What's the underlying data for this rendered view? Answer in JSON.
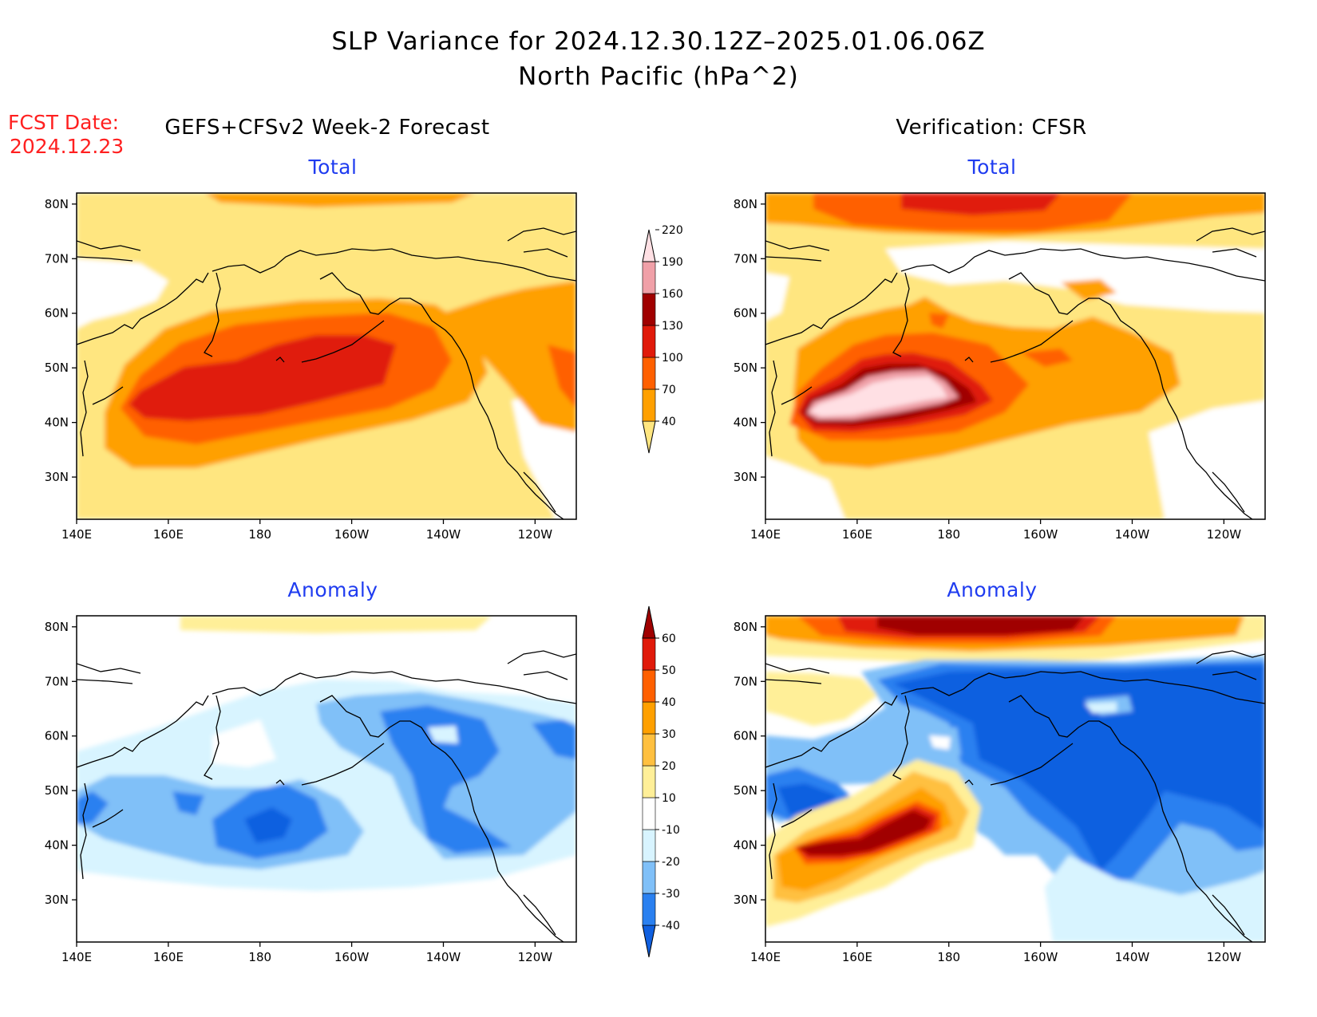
{
  "title_line1": "SLP Variance for 2024.12.30.12Z–2025.01.06.06Z",
  "title_line2": "North Pacific (hPa^2)",
  "fcst_date_label": "FCST Date:",
  "fcst_date_value": "2024.12.23",
  "left_column_title": "GEFS+CFSv2 Week-2 Forecast",
  "right_column_title": "Verification: CFSR",
  "panels": [
    {
      "id": "fcst-total",
      "title": "Total"
    },
    {
      "id": "verif-total",
      "title": "Total"
    },
    {
      "id": "fcst-anomaly",
      "title": "Anomaly"
    },
    {
      "id": "verif-anomaly",
      "title": "Anomaly"
    }
  ],
  "axes": {
    "lon_labels": [
      "140E",
      "160E",
      "180",
      "160W",
      "140W",
      "120W"
    ],
    "lat_labels": [
      "30N",
      "40N",
      "50N",
      "60N",
      "70N",
      "80N"
    ]
  },
  "colorbar_total": {
    "levels": [
      "40",
      "70",
      "100",
      "130",
      "160",
      "190",
      "220"
    ],
    "colors": [
      "#ffe680",
      "#ffa000",
      "#ff6000",
      "#e01a0a",
      "#a00000",
      "#f0a0a8",
      "#ffe0e4"
    ]
  },
  "colorbar_anomaly": {
    "levels": [
      "-40",
      "-30",
      "-20",
      "-10",
      "10",
      "20",
      "30",
      "40",
      "50",
      "60"
    ],
    "colors": [
      "#1060e0",
      "#2a80f0",
      "#80c0f8",
      "#d8f4ff",
      "#ffffff",
      "#ffef98",
      "#ffc040",
      "#ffa000",
      "#ff6000",
      "#e01a0a",
      "#a00000"
    ]
  }
}
